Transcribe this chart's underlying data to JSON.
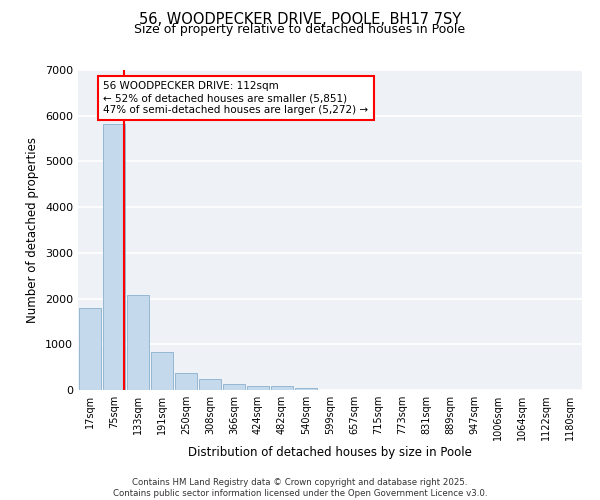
{
  "title_line1": "56, WOODPECKER DRIVE, POOLE, BH17 7SY",
  "title_line2": "Size of property relative to detached houses in Poole",
  "xlabel": "Distribution of detached houses by size in Poole",
  "ylabel": "Number of detached properties",
  "bar_color": "#c5d9ec",
  "bar_edge_color": "#8ab0ce",
  "vline_color": "red",
  "categories": [
    "17sqm",
    "75sqm",
    "133sqm",
    "191sqm",
    "250sqm",
    "308sqm",
    "366sqm",
    "424sqm",
    "482sqm",
    "540sqm",
    "599sqm",
    "657sqm",
    "715sqm",
    "773sqm",
    "831sqm",
    "889sqm",
    "947sqm",
    "1006sqm",
    "1064sqm",
    "1122sqm",
    "1180sqm"
  ],
  "values": [
    1800,
    5820,
    2080,
    840,
    370,
    240,
    135,
    90,
    85,
    40,
    10,
    0,
    0,
    0,
    0,
    0,
    0,
    0,
    0,
    0,
    0
  ],
  "ylim": [
    0,
    7000
  ],
  "yticks": [
    0,
    1000,
    2000,
    3000,
    4000,
    5000,
    6000,
    7000
  ],
  "vline_pos": 1.42,
  "annotation_title": "56 WOODPECKER DRIVE: 112sqm",
  "annotation_line2": "← 52% of detached houses are smaller (5,851)",
  "annotation_line3": "47% of semi-detached houses are larger (5,272) →",
  "annotation_box_color": "white",
  "annotation_box_edge": "red",
  "footer_line1": "Contains HM Land Registry data © Crown copyright and database right 2025.",
  "footer_line2": "Contains public sector information licensed under the Open Government Licence v3.0.",
  "background_color": "#eef2f7",
  "grid_color": "white",
  "figure_bg": "white"
}
